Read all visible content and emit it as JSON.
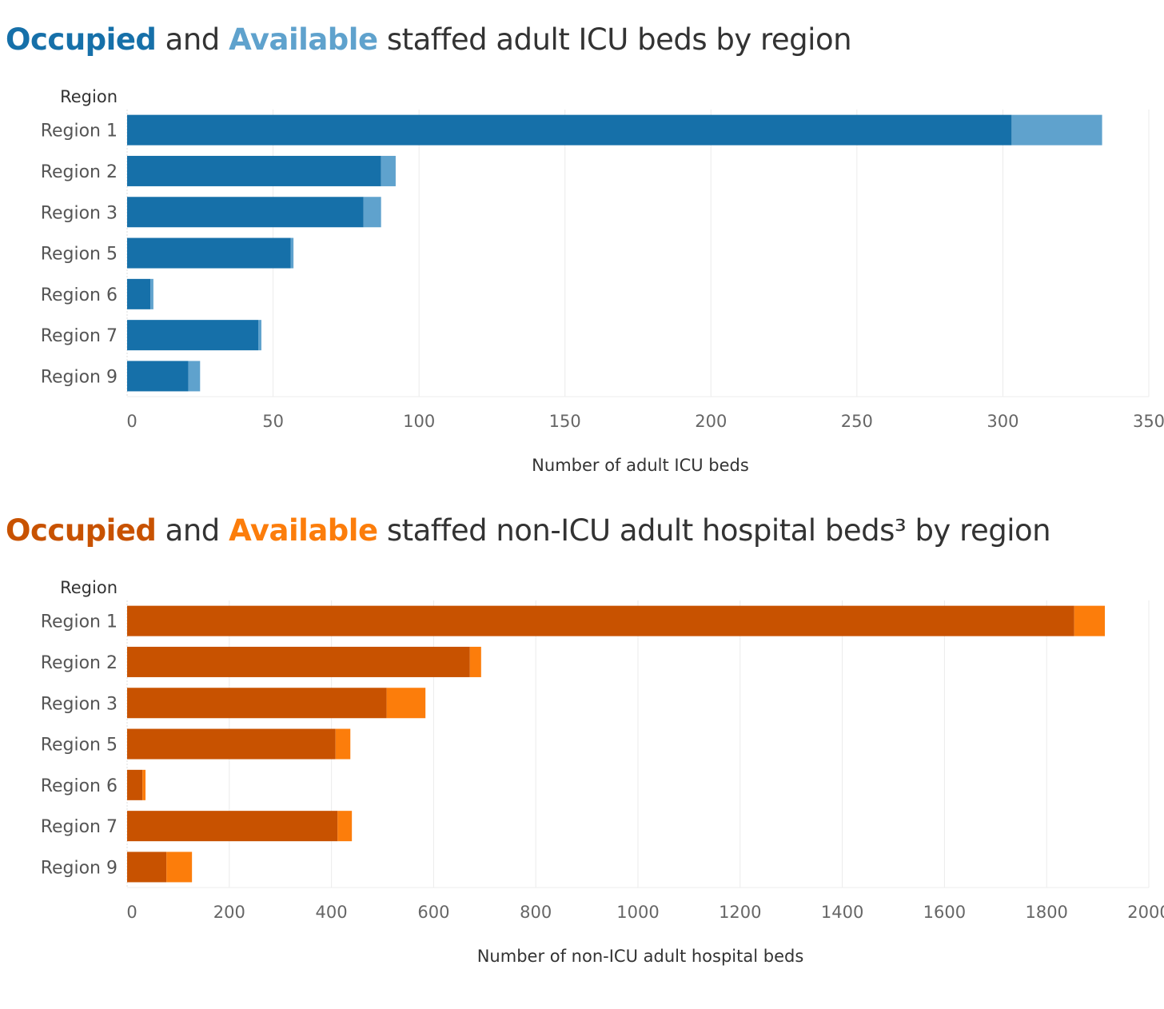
{
  "chart_data": [
    {
      "type": "bar",
      "stacked": true,
      "orientation": "horizontal",
      "title_parts": {
        "occupied": "Occupied",
        "and": " and ",
        "available": "Available",
        "rest": " staffed adult ICU beds by region"
      },
      "ylabel": "Region",
      "xlabel": "Number of adult ICU beds",
      "xlim": [
        0,
        350
      ],
      "xticks": [
        0,
        50,
        100,
        150,
        200,
        250,
        300,
        350
      ],
      "grid": true,
      "categories": [
        "Region 1",
        "Region 2",
        "Region 3",
        "Region 5",
        "Region 6",
        "Region 7",
        "Region 9"
      ],
      "series": [
        {
          "name": "Occupied",
          "color": "#1670a9",
          "values": [
            303,
            87,
            81,
            56,
            8,
            45,
            21
          ]
        },
        {
          "name": "Available",
          "color": "#5fa2cd",
          "values": [
            31,
            5,
            6,
            1,
            1,
            1,
            4
          ]
        }
      ]
    },
    {
      "type": "bar",
      "stacked": true,
      "orientation": "horizontal",
      "title_parts": {
        "occupied": "Occupied",
        "and": " and ",
        "available": "Available",
        "rest": " staffed non-ICU adult hospital beds³ by region"
      },
      "ylabel": "Region",
      "xlabel": "Number of non-ICU adult hospital beds",
      "xlim": [
        0,
        2000
      ],
      "xticks": [
        0,
        200,
        400,
        600,
        800,
        1000,
        1200,
        1400,
        1600,
        1800,
        2000
      ],
      "grid": true,
      "categories": [
        "Region 1",
        "Region 2",
        "Region 3",
        "Region 5",
        "Region 6",
        "Region 7",
        "Region 9"
      ],
      "series": [
        {
          "name": "Occupied",
          "color": "#c85200",
          "values": [
            1854,
            671,
            508,
            408,
            30,
            412,
            77
          ]
        },
        {
          "name": "Available",
          "color": "#fc7d0b",
          "values": [
            60,
            22,
            76,
            29,
            6,
            28,
            50
          ]
        }
      ]
    }
  ]
}
